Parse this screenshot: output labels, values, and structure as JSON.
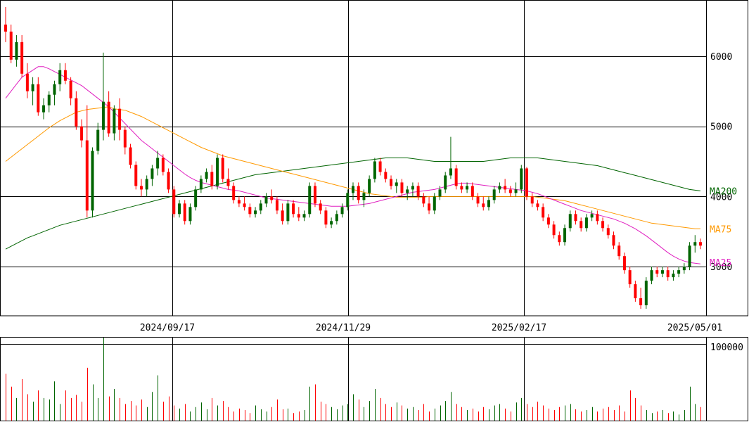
{
  "chart_data": {
    "type": "candlestick",
    "x_ticks": [
      "2024/09/17",
      "2024/11/29",
      "2025/02/17",
      "2025/05/01"
    ],
    "price_ticks": [
      3000,
      4000,
      5000,
      6000
    ],
    "price_tick_labels": [
      "3000",
      "4000",
      "5000",
      "6000"
    ],
    "ylim": [
      2300,
      6800
    ],
    "volume_tick_label": "100000",
    "volume_max": 110000,
    "ma_labels": [
      {
        "name": "MA200",
        "color": "#006400"
      },
      {
        "name": "MA75",
        "color": "#ff9900"
      },
      {
        "name": "MA25",
        "color": "#e020c0"
      }
    ],
    "up_color": "#006400",
    "down_color": "#ff0000",
    "candles": [
      [
        6450,
        6700,
        6200,
        6350
      ],
      [
        6350,
        6450,
        5900,
        5950
      ],
      [
        5950,
        6300,
        5850,
        6200
      ],
      [
        6200,
        6300,
        5700,
        5750
      ],
      [
        5750,
        5900,
        5400,
        5500
      ],
      [
        5500,
        5700,
        5300,
        5600
      ],
      [
        5600,
        5700,
        5150,
        5200
      ],
      [
        5200,
        5400,
        5100,
        5300
      ],
      [
        5300,
        5500,
        5200,
        5450
      ],
      [
        5450,
        5650,
        5300,
        5600
      ],
      [
        5600,
        5900,
        5500,
        5800
      ],
      [
        5800,
        5900,
        5600,
        5650
      ],
      [
        5650,
        5700,
        5300,
        5400
      ],
      [
        5400,
        5500,
        4950,
        5000
      ],
      [
        5000,
        5100,
        4700,
        4800
      ],
      [
        4800,
        5300,
        3700,
        3800
      ],
      [
        3800,
        4700,
        3700,
        4650
      ],
      [
        4650,
        5050,
        4600,
        4950
      ],
      [
        4950,
        6050,
        4800,
        5350
      ],
      [
        5350,
        5500,
        4850,
        4900
      ],
      [
        4900,
        5300,
        4800,
        5250
      ],
      [
        5250,
        5400,
        4800,
        4950
      ],
      [
        4950,
        5000,
        4600,
        4700
      ],
      [
        4700,
        4750,
        4400,
        4450
      ],
      [
        4450,
        4500,
        4100,
        4150
      ],
      [
        4150,
        4250,
        4000,
        4100
      ],
      [
        4100,
        4300,
        4000,
        4250
      ],
      [
        4250,
        4450,
        4150,
        4400
      ],
      [
        4400,
        4650,
        4300,
        4550
      ],
      [
        4550,
        4600,
        4300,
        4350
      ],
      [
        4350,
        4400,
        4050,
        4100
      ],
      [
        4100,
        4150,
        3700,
        3750
      ],
      [
        3750,
        3950,
        3700,
        3900
      ],
      [
        3900,
        3950,
        3600,
        3650
      ],
      [
        3650,
        3900,
        3600,
        3850
      ],
      [
        3850,
        4150,
        3800,
        4100
      ],
      [
        4100,
        4300,
        4050,
        4250
      ],
      [
        4250,
        4400,
        4200,
        4350
      ],
      [
        4350,
        4450,
        4100,
        4150
      ],
      [
        4150,
        4600,
        4100,
        4550
      ],
      [
        4550,
        4600,
        4200,
        4250
      ],
      [
        4250,
        4400,
        4100,
        4150
      ],
      [
        4150,
        4200,
        3900,
        3950
      ],
      [
        3950,
        4000,
        3850,
        3900
      ],
      [
        3900,
        4000,
        3800,
        3850
      ],
      [
        3850,
        3900,
        3700,
        3750
      ],
      [
        3750,
        3850,
        3700,
        3800
      ],
      [
        3800,
        3950,
        3750,
        3900
      ],
      [
        3900,
        4050,
        3850,
        4000
      ],
      [
        4000,
        4100,
        3900,
        3950
      ],
      [
        3950,
        4000,
        3750,
        3800
      ],
      [
        3800,
        3900,
        3600,
        3650
      ],
      [
        3650,
        3950,
        3600,
        3900
      ],
      [
        3900,
        3950,
        3700,
        3750
      ],
      [
        3750,
        3850,
        3650,
        3700
      ],
      [
        3700,
        3800,
        3650,
        3750
      ],
      [
        3750,
        4200,
        3700,
        4150
      ],
      [
        4150,
        4200,
        3850,
        3900
      ],
      [
        3900,
        3950,
        3750,
        3800
      ],
      [
        3800,
        3850,
        3550,
        3600
      ],
      [
        3600,
        3700,
        3550,
        3650
      ],
      [
        3650,
        3800,
        3600,
        3750
      ],
      [
        3750,
        3900,
        3700,
        3850
      ],
      [
        3850,
        4100,
        3800,
        4050
      ],
      [
        4050,
        4200,
        3950,
        4150
      ],
      [
        4150,
        4200,
        3900,
        3950
      ],
      [
        3950,
        4100,
        3850,
        4050
      ],
      [
        4050,
        4300,
        4000,
        4250
      ],
      [
        4250,
        4550,
        4200,
        4500
      ],
      [
        4500,
        4550,
        4300,
        4350
      ],
      [
        4350,
        4400,
        4200,
        4250
      ],
      [
        4250,
        4300,
        4100,
        4150
      ],
      [
        4150,
        4250,
        4050,
        4200
      ],
      [
        4200,
        4250,
        4000,
        4050
      ],
      [
        4050,
        4150,
        3950,
        4100
      ],
      [
        4100,
        4200,
        4000,
        4150
      ],
      [
        4150,
        4200,
        3950,
        4000
      ],
      [
        4000,
        4050,
        3850,
        3900
      ],
      [
        3900,
        4000,
        3750,
        3800
      ],
      [
        3800,
        4050,
        3750,
        4000
      ],
      [
        4000,
        4150,
        3950,
        4100
      ],
      [
        4100,
        4350,
        4050,
        4300
      ],
      [
        4300,
        4850,
        4250,
        4400
      ],
      [
        4400,
        4450,
        4100,
        4150
      ],
      [
        4150,
        4200,
        4050,
        4100
      ],
      [
        4100,
        4200,
        4050,
        4150
      ],
      [
        4150,
        4200,
        3950,
        4000
      ],
      [
        4000,
        4050,
        3850,
        3900
      ],
      [
        3900,
        4000,
        3800,
        3850
      ],
      [
        3850,
        4000,
        3800,
        3950
      ],
      [
        3950,
        4150,
        3900,
        4100
      ],
      [
        4100,
        4200,
        4050,
        4150
      ],
      [
        4150,
        4250,
        4050,
        4100
      ],
      [
        4100,
        4150,
        4000,
        4050
      ],
      [
        4050,
        4200,
        4000,
        4100
      ],
      [
        4100,
        4450,
        4050,
        4400
      ],
      [
        4400,
        4420,
        3950,
        4000
      ],
      [
        4000,
        4050,
        3850,
        3900
      ],
      [
        3900,
        3950,
        3800,
        3850
      ],
      [
        3850,
        3900,
        3650,
        3700
      ],
      [
        3700,
        3750,
        3550,
        3600
      ],
      [
        3600,
        3650,
        3400,
        3450
      ],
      [
        3450,
        3500,
        3300,
        3350
      ],
      [
        3350,
        3600,
        3300,
        3550
      ],
      [
        3550,
        3800,
        3500,
        3750
      ],
      [
        3750,
        3800,
        3600,
        3650
      ],
      [
        3650,
        3700,
        3500,
        3550
      ],
      [
        3550,
        3750,
        3500,
        3700
      ],
      [
        3700,
        3800,
        3650,
        3750
      ],
      [
        3750,
        3800,
        3600,
        3650
      ],
      [
        3650,
        3700,
        3500,
        3550
      ],
      [
        3550,
        3600,
        3400,
        3450
      ],
      [
        3450,
        3500,
        3250,
        3300
      ],
      [
        3300,
        3350,
        3100,
        3150
      ],
      [
        3150,
        3200,
        2900,
        2950
      ],
      [
        2950,
        3000,
        2700,
        2750
      ],
      [
        2750,
        2800,
        2500,
        2550
      ],
      [
        2550,
        2700,
        2400,
        2450
      ],
      [
        2450,
        2850,
        2400,
        2800
      ],
      [
        2800,
        3000,
        2750,
        2950
      ],
      [
        2950,
        3000,
        2850,
        2900
      ],
      [
        2900,
        3000,
        2850,
        2950
      ],
      [
        2950,
        3000,
        2800,
        2850
      ],
      [
        2850,
        2950,
        2800,
        2900
      ],
      [
        2900,
        3000,
        2850,
        2950
      ],
      [
        2950,
        3050,
        2900,
        3000
      ],
      [
        3000,
        3350,
        2950,
        3300
      ],
      [
        3300,
        3450,
        3200,
        3350
      ],
      [
        3350,
        3400,
        3250,
        3300
      ]
    ],
    "volume": [
      62000,
      45000,
      30000,
      55000,
      35000,
      25000,
      40000,
      30000,
      28000,
      52000,
      22000,
      40000,
      30000,
      34000,
      25000,
      70000,
      48000,
      30000,
      110000,
      32000,
      42000,
      30000,
      22000,
      26000,
      20000,
      28000,
      18000,
      38000,
      60000,
      25000,
      32000,
      20000,
      16000,
      22000,
      12000,
      18000,
      24000,
      15000,
      30000,
      20000,
      26000,
      18000,
      12000,
      16000,
      14000,
      10000,
      20000,
      15000,
      12000,
      18000,
      28000,
      15000,
      16000,
      10000,
      12000,
      14000,
      45000,
      48000,
      25000,
      22000,
      18000,
      15000,
      20000,
      22000,
      35000,
      28000,
      18000,
      26000,
      42000,
      30000,
      22000,
      18000,
      24000,
      20000,
      16000,
      18000,
      14000,
      22000,
      12000,
      16000,
      20000,
      26000,
      38000,
      22000,
      18000,
      14000,
      16000,
      12000,
      18000,
      15000,
      20000,
      22000,
      16000,
      12000,
      24000,
      30000,
      22000,
      18000,
      25000,
      20000,
      16000,
      14000,
      18000,
      20000,
      22000,
      15000,
      12000,
      14000,
      18000,
      12000,
      16000,
      18000,
      14000,
      20000,
      12000,
      40000,
      30000,
      20000,
      14000,
      10000,
      12000,
      14000,
      10000,
      12000,
      8000,
      14000,
      45000,
      22000,
      18000
    ],
    "ma25": [
      5400,
      5500,
      5600,
      5700,
      5750,
      5800,
      5850,
      5850,
      5820,
      5780,
      5740,
      5700,
      5660,
      5620,
      5580,
      5520,
      5460,
      5400,
      5340,
      5280,
      5200,
      5120,
      5040,
      4960,
      4880,
      4800,
      4740,
      4680,
      4620,
      4560,
      4500,
      4440,
      4380,
      4320,
      4270,
      4230,
      4200,
      4180,
      4160,
      4140,
      4120,
      4100,
      4090,
      4080,
      4060,
      4040,
      4020,
      4000,
      3980,
      3970,
      3960,
      3950,
      3940,
      3930,
      3920,
      3910,
      3900,
      3890,
      3880,
      3870,
      3860,
      3860,
      3860,
      3860,
      3870,
      3880,
      3890,
      3900,
      3920,
      3940,
      3960,
      3980,
      4000,
      4020,
      4040,
      4060,
      4070,
      4080,
      4090,
      4100,
      4120,
      4140,
      4160,
      4180,
      4190,
      4190,
      4180,
      4170,
      4160,
      4150,
      4140,
      4130,
      4120,
      4110,
      4100,
      4090,
      4080,
      4060,
      4040,
      4010,
      3980,
      3950,
      3920,
      3890,
      3860,
      3830,
      3800,
      3780,
      3760,
      3740,
      3720,
      3700,
      3680,
      3650,
      3620,
      3580,
      3540,
      3490,
      3440,
      3380,
      3320,
      3260,
      3200,
      3150,
      3110,
      3080,
      3060,
      3050,
      3040
    ],
    "ma75": [
      4500,
      4560,
      4620,
      4680,
      4740,
      4800,
      4860,
      4920,
      4980,
      5030,
      5080,
      5120,
      5160,
      5200,
      5220,
      5240,
      5250,
      5260,
      5270,
      5280,
      5250,
      5240,
      5230,
      5200,
      5170,
      5140,
      5100,
      5060,
      5020,
      4980,
      4940,
      4900,
      4860,
      4820,
      4780,
      4740,
      4700,
      4670,
      4640,
      4610,
      4580,
      4560,
      4540,
      4520,
      4500,
      4480,
      4460,
      4440,
      4420,
      4400,
      4380,
      4360,
      4340,
      4320,
      4300,
      4280,
      4260,
      4240,
      4220,
      4200,
      4180,
      4160,
      4140,
      4120,
      4100,
      4080,
      4060,
      4040,
      4030,
      4020,
      4010,
      4000,
      3990,
      3990,
      3990,
      3990,
      3990,
      3990,
      4000,
      4000,
      4000,
      4000,
      4000,
      4000,
      4000,
      4000,
      4000,
      4000,
      4000,
      4000,
      4000,
      4000,
      4000,
      4000,
      4000,
      4000,
      4000,
      4000,
      3990,
      3980,
      3970,
      3960,
      3950,
      3940,
      3920,
      3900,
      3880,
      3860,
      3840,
      3820,
      3800,
      3780,
      3760,
      3740,
      3720,
      3700,
      3680,
      3660,
      3640,
      3620,
      3610,
      3600,
      3590,
      3580,
      3570,
      3560,
      3550,
      3540,
      3540
    ],
    "ma200": [
      3250,
      3290,
      3330,
      3370,
      3410,
      3440,
      3470,
      3500,
      3530,
      3560,
      3590,
      3610,
      3630,
      3650,
      3670,
      3690,
      3710,
      3730,
      3750,
      3770,
      3790,
      3810,
      3830,
      3850,
      3870,
      3890,
      3910,
      3930,
      3950,
      3970,
      3990,
      4010,
      4030,
      4050,
      4070,
      4090,
      4110,
      4130,
      4150,
      4170,
      4190,
      4210,
      4230,
      4250,
      4270,
      4290,
      4310,
      4320,
      4330,
      4340,
      4350,
      4360,
      4370,
      4380,
      4390,
      4400,
      4410,
      4420,
      4430,
      4440,
      4450,
      4460,
      4470,
      4480,
      4490,
      4500,
      4510,
      4520,
      4530,
      4540,
      4550,
      4550,
      4550,
      4550,
      4550,
      4540,
      4530,
      4520,
      4510,
      4500,
      4500,
      4500,
      4500,
      4500,
      4500,
      4500,
      4500,
      4500,
      4500,
      4510,
      4520,
      4530,
      4540,
      4550,
      4550,
      4550,
      4550,
      4550,
      4550,
      4540,
      4530,
      4520,
      4510,
      4500,
      4490,
      4480,
      4470,
      4460,
      4450,
      4440,
      4420,
      4400,
      4380,
      4360,
      4340,
      4320,
      4300,
      4280,
      4260,
      4240,
      4220,
      4200,
      4180,
      4160,
      4140,
      4120,
      4100,
      4090,
      4080
    ]
  }
}
